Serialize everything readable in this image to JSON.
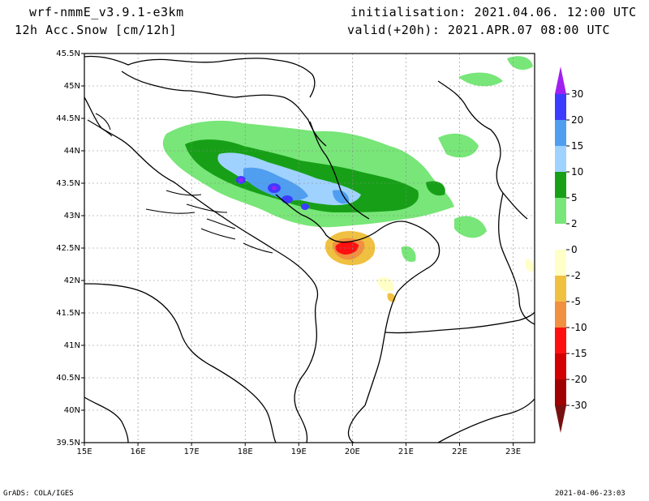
{
  "header": {
    "model": "wrf-nmmE_v3.9.1-e3km",
    "field": "12h Acc.Snow [cm/12h]",
    "initialisation": "initialisation: 2021.04.06.  12:00 UTC",
    "valid": "valid(+20h): 2021.APR.07 08:00 UTC"
  },
  "footer": {
    "credit": "GrADS: COLA/IGES",
    "timestamp": "2021-04-06-23:03"
  },
  "axes": {
    "lon_labels": [
      "15E",
      "16E",
      "17E",
      "18E",
      "19E",
      "20E",
      "21E",
      "22E",
      "23E"
    ],
    "lat_labels": [
      "45.5N",
      "45N",
      "44.5N",
      "44N",
      "43.5N",
      "43N",
      "42.5N",
      "42N",
      "41.5N",
      "41N",
      "40.5N",
      "40N",
      "39.5N"
    ],
    "lon_range": [
      15,
      23.4
    ],
    "lat_range": [
      39.5,
      45.5
    ]
  },
  "colorbar": {
    "levels": [
      "30",
      "20",
      "15",
      "10",
      "5",
      "2",
      "0",
      "-2",
      "-5",
      "-10",
      "-15",
      "-20",
      "-30"
    ],
    "colors": [
      "#a020f0",
      "#3c3cff",
      "#4f9ef0",
      "#a0d2ff",
      "#17a017",
      "#78e678",
      "#ffffff",
      "#ffffc8",
      "#f0c040",
      "#f09040",
      "#ff1010",
      "#d20000",
      "#a00000",
      "#781010"
    ]
  }
}
